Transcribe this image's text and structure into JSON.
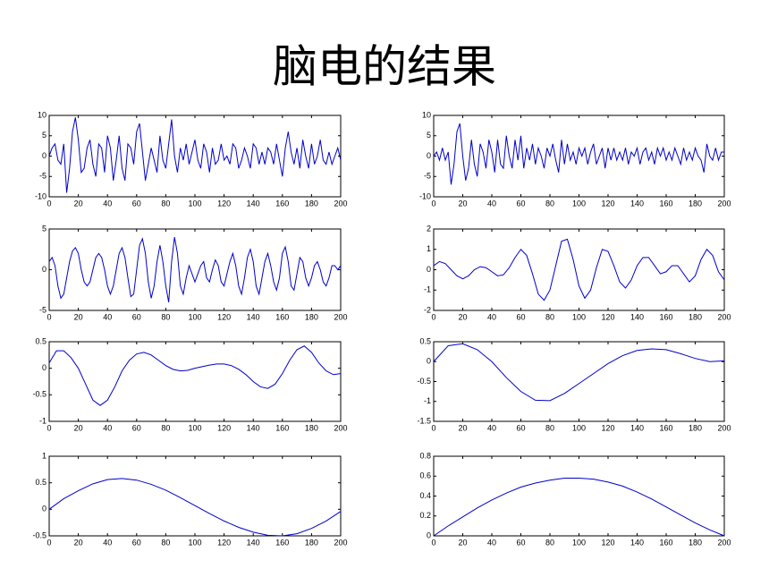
{
  "title": "脑电的结果",
  "chart_data": [
    {
      "type": "line",
      "color": "#0000cc",
      "xlim": [
        0,
        200
      ],
      "xticks": [
        0,
        20,
        40,
        60,
        80,
        100,
        120,
        140,
        160,
        180,
        200
      ],
      "ylim": [
        -10,
        10
      ],
      "yticks": [
        -10,
        -5,
        0,
        5,
        10
      ],
      "x": [
        0,
        2,
        4,
        6,
        8,
        10,
        12,
        14,
        16,
        18,
        20,
        22,
        24,
        26,
        28,
        30,
        32,
        34,
        36,
        38,
        40,
        42,
        44,
        46,
        48,
        50,
        52,
        54,
        56,
        58,
        60,
        62,
        64,
        66,
        68,
        70,
        72,
        74,
        76,
        78,
        80,
        82,
        84,
        86,
        88,
        90,
        92,
        94,
        96,
        98,
        100,
        102,
        104,
        106,
        108,
        110,
        112,
        114,
        116,
        118,
        120,
        122,
        124,
        126,
        128,
        130,
        132,
        134,
        136,
        138,
        140,
        142,
        144,
        146,
        148,
        150,
        152,
        154,
        156,
        158,
        160,
        162,
        164,
        166,
        168,
        170,
        172,
        174,
        176,
        178,
        180,
        182,
        184,
        186,
        188,
        190,
        192,
        194,
        196,
        198,
        200
      ],
      "values": [
        0,
        2,
        3,
        -1,
        -2,
        3,
        -9,
        -3,
        6,
        9.5,
        4,
        -4,
        -3,
        2,
        4,
        -2,
        -5,
        3,
        2,
        -4,
        5,
        2,
        -6,
        -1,
        5,
        -3,
        -6,
        3,
        2,
        -2,
        6,
        8,
        1,
        -6,
        -2,
        2,
        -1,
        -4,
        5,
        -1,
        -3,
        3,
        9,
        0,
        -4,
        2,
        -1,
        3,
        -2,
        1,
        4,
        -1,
        -3,
        3,
        1,
        -4,
        2,
        -2,
        -1,
        3,
        -1,
        0,
        -2,
        3,
        2,
        -3,
        -1,
        2,
        0,
        -3,
        3,
        2,
        -2,
        1,
        -2,
        2,
        1,
        -2,
        3,
        -1,
        -5,
        2,
        6,
        1,
        -2,
        2,
        -3,
        4,
        0,
        -3,
        3,
        -2,
        0,
        4,
        -1,
        -2,
        1,
        -2,
        0,
        2,
        -1
      ]
    },
    {
      "type": "line",
      "color": "#0000cc",
      "xlim": [
        0,
        200
      ],
      "xticks": [
        0,
        20,
        40,
        60,
        80,
        100,
        120,
        140,
        160,
        180,
        200
      ],
      "ylim": [
        -10,
        10
      ],
      "yticks": [
        -10,
        -5,
        0,
        5,
        10
      ],
      "x": [
        0,
        2,
        4,
        6,
        8,
        10,
        12,
        14,
        16,
        18,
        20,
        22,
        24,
        26,
        28,
        30,
        32,
        34,
        36,
        38,
        40,
        42,
        44,
        46,
        48,
        50,
        52,
        54,
        56,
        58,
        60,
        62,
        64,
        66,
        68,
        70,
        72,
        74,
        76,
        78,
        80,
        82,
        84,
        86,
        88,
        90,
        92,
        94,
        96,
        98,
        100,
        102,
        104,
        106,
        108,
        110,
        112,
        114,
        116,
        118,
        120,
        122,
        124,
        126,
        128,
        130,
        132,
        134,
        136,
        138,
        140,
        142,
        144,
        146,
        148,
        150,
        152,
        154,
        156,
        158,
        160,
        162,
        164,
        166,
        168,
        170,
        172,
        174,
        176,
        178,
        180,
        182,
        184,
        186,
        188,
        190,
        192,
        194,
        196,
        198,
        200
      ],
      "values": [
        0,
        1,
        -1,
        2,
        -1,
        1,
        -7,
        -2,
        6,
        8,
        0,
        -6,
        -3,
        4,
        -2,
        -5,
        3,
        1,
        -3,
        4,
        1,
        -4,
        4,
        -2,
        -3,
        5,
        0,
        -3,
        4,
        -1,
        5,
        -3,
        2,
        -1,
        3,
        -2,
        2,
        0,
        -3,
        2,
        0,
        3,
        -1,
        -4,
        4,
        -2,
        3,
        -1,
        1,
        -2,
        2,
        0,
        2,
        -2,
        1,
        3,
        -2,
        0,
        2,
        -3,
        2,
        -1,
        2,
        -1,
        1,
        -1,
        2,
        -2,
        1,
        0,
        2,
        -2,
        1,
        2,
        -1,
        1,
        -2,
        2,
        0,
        2,
        -1,
        1,
        -1,
        2,
        0,
        -2,
        2,
        -1,
        1,
        -1,
        2,
        0,
        -1,
        -4,
        3,
        0,
        -1,
        2,
        -1,
        1,
        1
      ]
    },
    {
      "type": "line",
      "color": "#0000cc",
      "xlim": [
        0,
        200
      ],
      "xticks": [
        0,
        20,
        40,
        60,
        80,
        100,
        120,
        140,
        160,
        180,
        200
      ],
      "ylim": [
        -5,
        5
      ],
      "yticks": [
        -5,
        0,
        5
      ],
      "x": [
        0,
        2,
        4,
        6,
        8,
        10,
        12,
        14,
        16,
        18,
        20,
        22,
        24,
        26,
        28,
        30,
        32,
        34,
        36,
        38,
        40,
        42,
        44,
        46,
        48,
        50,
        52,
        54,
        56,
        58,
        60,
        62,
        64,
        66,
        68,
        70,
        72,
        74,
        76,
        78,
        80,
        82,
        84,
        86,
        88,
        90,
        92,
        94,
        96,
        98,
        100,
        102,
        104,
        106,
        108,
        110,
        112,
        114,
        116,
        118,
        120,
        122,
        124,
        126,
        128,
        130,
        132,
        134,
        136,
        138,
        140,
        142,
        144,
        146,
        148,
        150,
        152,
        154,
        156,
        158,
        160,
        162,
        164,
        166,
        168,
        170,
        172,
        174,
        176,
        178,
        180,
        182,
        184,
        186,
        188,
        190,
        192,
        194,
        196,
        198,
        200
      ],
      "values": [
        1,
        1.5,
        0.5,
        -2,
        -3.5,
        -3,
        -1,
        1,
        2.3,
        2.7,
        2,
        0,
        -1.5,
        -2,
        -1.5,
        0,
        1.5,
        2,
        1.5,
        0,
        -2,
        -3,
        -2,
        0,
        2,
        2.7,
        1.5,
        -1,
        -3.3,
        -3,
        0,
        3,
        3.8,
        2,
        -1.5,
        -3.5,
        -2,
        1,
        3,
        1,
        -2,
        -4,
        1,
        4,
        2,
        -2,
        -3,
        -1,
        0.5,
        -0.5,
        -1.5,
        -0.5,
        0.5,
        1,
        -1,
        -1.5,
        0,
        1.2,
        0.5,
        -1.5,
        -2,
        -0.5,
        1,
        2,
        0.5,
        -2,
        -3,
        -1,
        1.5,
        2.5,
        1,
        -2,
        -3,
        -1,
        1,
        2,
        0.5,
        -1.5,
        -2.5,
        -1,
        2,
        2.8,
        1,
        -2,
        -2.5,
        -0.5,
        1.5,
        1,
        -1,
        -2,
        -1,
        0.5,
        1,
        0,
        -1.5,
        -2,
        -1,
        0.5,
        0.5,
        0,
        0.5
      ]
    },
    {
      "type": "line",
      "color": "#0000cc",
      "xlim": [
        0,
        200
      ],
      "xticks": [
        0,
        20,
        40,
        60,
        80,
        100,
        120,
        140,
        160,
        180,
        200
      ],
      "ylim": [
        -2,
        2
      ],
      "yticks": [
        -2,
        -1,
        0,
        1,
        2
      ],
      "x": [
        0,
        4,
        8,
        12,
        16,
        20,
        24,
        28,
        32,
        36,
        40,
        44,
        48,
        52,
        56,
        60,
        64,
        68,
        72,
        76,
        80,
        84,
        88,
        92,
        96,
        100,
        104,
        108,
        112,
        116,
        120,
        124,
        128,
        132,
        136,
        140,
        144,
        148,
        152,
        156,
        160,
        164,
        168,
        172,
        176,
        180,
        184,
        188,
        192,
        196,
        200
      ],
      "values": [
        0.2,
        0.4,
        0.3,
        0,
        -0.3,
        -0.45,
        -0.3,
        0,
        0.15,
        0.1,
        -0.1,
        -0.3,
        -0.25,
        0.1,
        0.6,
        1.0,
        0.7,
        -0.2,
        -1.2,
        -1.5,
        -1.0,
        0.2,
        1.4,
        1.5,
        0.5,
        -0.8,
        -1.4,
        -1.0,
        0.1,
        1.0,
        0.9,
        0.2,
        -0.6,
        -0.9,
        -0.5,
        0.2,
        0.6,
        0.6,
        0.2,
        -0.2,
        -0.1,
        0.2,
        0.2,
        -0.2,
        -0.6,
        -0.3,
        0.5,
        1.0,
        0.7,
        -0.1,
        -0.5
      ]
    },
    {
      "type": "line",
      "color": "#0000cc",
      "xlim": [
        0,
        200
      ],
      "xticks": [
        0,
        20,
        40,
        60,
        80,
        100,
        120,
        140,
        160,
        180,
        200
      ],
      "ylim": [
        -1,
        0.5
      ],
      "yticks": [
        -1,
        -0.5,
        0,
        0.5
      ],
      "x": [
        0,
        5,
        10,
        15,
        20,
        25,
        30,
        35,
        40,
        45,
        50,
        55,
        60,
        65,
        70,
        75,
        80,
        85,
        90,
        95,
        100,
        105,
        110,
        115,
        120,
        125,
        130,
        135,
        140,
        145,
        150,
        155,
        160,
        165,
        170,
        175,
        180,
        185,
        190,
        195,
        200
      ],
      "values": [
        0.1,
        0.33,
        0.33,
        0.2,
        0,
        -0.3,
        -0.6,
        -0.7,
        -0.6,
        -0.35,
        -0.05,
        0.15,
        0.27,
        0.3,
        0.25,
        0.15,
        0.05,
        -0.02,
        -0.05,
        -0.04,
        0,
        0.03,
        0.06,
        0.08,
        0.08,
        0.05,
        -0.02,
        -0.12,
        -0.25,
        -0.35,
        -0.38,
        -0.3,
        -0.1,
        0.15,
        0.35,
        0.42,
        0.3,
        0.1,
        -0.05,
        -0.12,
        -0.1
      ]
    },
    {
      "type": "line",
      "color": "#0000cc",
      "xlim": [
        0,
        200
      ],
      "xticks": [
        0,
        20,
        40,
        60,
        80,
        100,
        120,
        140,
        160,
        180,
        200
      ],
      "ylim": [
        -1.5,
        0.5
      ],
      "yticks": [
        -1.5,
        -1,
        -0.5,
        0,
        0.5
      ],
      "x": [
        0,
        10,
        20,
        30,
        40,
        50,
        60,
        70,
        80,
        90,
        100,
        110,
        120,
        130,
        140,
        150,
        160,
        170,
        180,
        190,
        200
      ],
      "values": [
        0,
        0.4,
        0.45,
        0.3,
        0,
        -0.4,
        -0.75,
        -0.97,
        -0.98,
        -0.8,
        -0.55,
        -0.3,
        -0.05,
        0.15,
        0.28,
        0.32,
        0.3,
        0.2,
        0.08,
        0,
        0.02
      ]
    },
    {
      "type": "line",
      "color": "#0000cc",
      "xlim": [
        0,
        200
      ],
      "xticks": [
        0,
        20,
        40,
        60,
        80,
        100,
        120,
        140,
        160,
        180,
        200
      ],
      "ylim": [
        -0.5,
        1
      ],
      "yticks": [
        -0.5,
        0,
        0.5,
        1
      ],
      "x": [
        0,
        10,
        20,
        30,
        40,
        50,
        60,
        70,
        80,
        90,
        100,
        110,
        120,
        130,
        140,
        150,
        160,
        170,
        180,
        190,
        200
      ],
      "values": [
        0,
        0.2,
        0.35,
        0.48,
        0.56,
        0.58,
        0.55,
        0.47,
        0.36,
        0.22,
        0.07,
        -0.08,
        -0.22,
        -0.34,
        -0.43,
        -0.49,
        -0.5,
        -0.46,
        -0.36,
        -0.22,
        -0.04
      ]
    },
    {
      "type": "line",
      "color": "#0000cc",
      "xlim": [
        0,
        200
      ],
      "xticks": [
        0,
        20,
        40,
        60,
        80,
        100,
        120,
        140,
        160,
        180,
        200
      ],
      "ylim": [
        0,
        0.8
      ],
      "yticks": [
        0,
        0.2,
        0.4,
        0.6,
        0.8
      ],
      "x": [
        0,
        10,
        20,
        30,
        40,
        50,
        60,
        70,
        80,
        90,
        100,
        110,
        120,
        130,
        140,
        150,
        160,
        170,
        180,
        190,
        200
      ],
      "values": [
        0,
        0.1,
        0.19,
        0.28,
        0.36,
        0.43,
        0.49,
        0.53,
        0.56,
        0.58,
        0.58,
        0.57,
        0.54,
        0.5,
        0.44,
        0.37,
        0.29,
        0.21,
        0.13,
        0.06,
        0
      ]
    }
  ]
}
